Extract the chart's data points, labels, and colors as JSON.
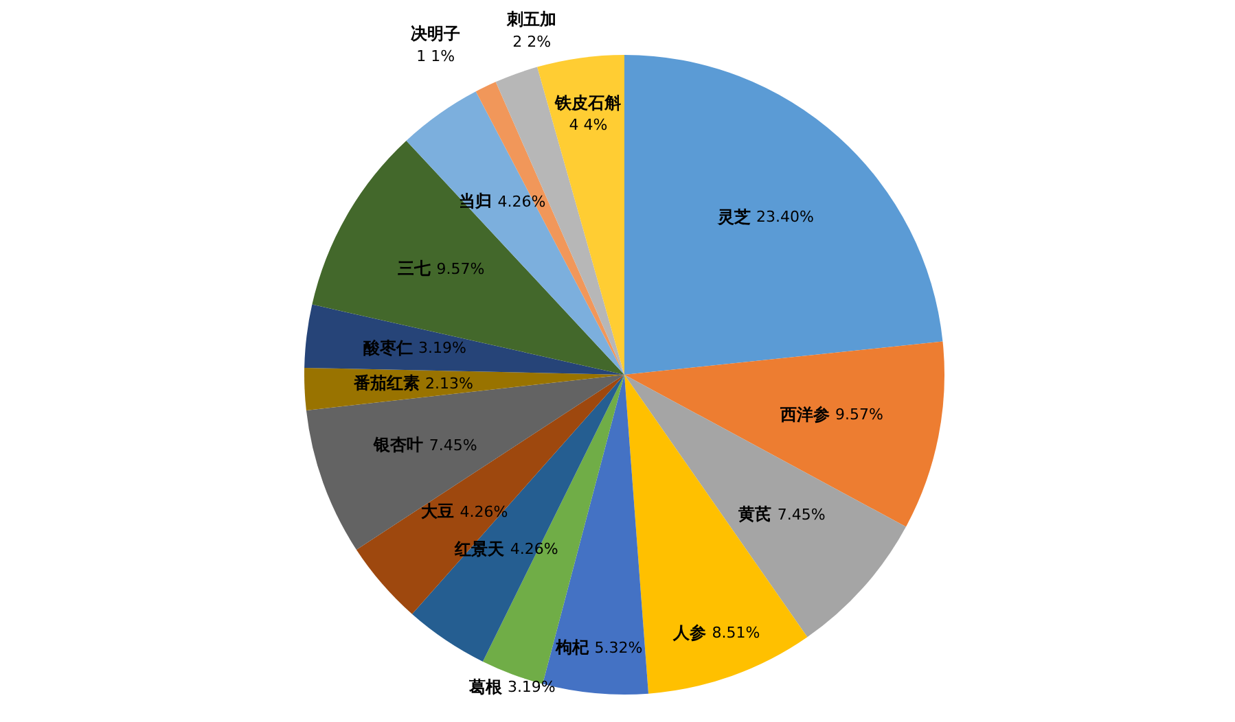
{
  "chart_data": {
    "type": "pie",
    "categories": [
      "灵芝",
      "西洋参",
      "黄芪",
      "人参",
      "枸杞",
      "葛根",
      "红景天",
      "大豆",
      "银杏叶",
      "番茄红素",
      "酸枣仁",
      "三七",
      "当归",
      "决明子",
      "刺五加",
      "铁皮石斛"
    ],
    "values": [
      23.4,
      9.57,
      7.45,
      8.51,
      5.32,
      3.19,
      4.26,
      4.26,
      7.45,
      2.13,
      3.19,
      9.57,
      4.26,
      1.1,
      2.2,
      4.4
    ],
    "value_labels": [
      "23.40%",
      "9.57%",
      "7.45%",
      "8.51%",
      "5.32%",
      "3.19%",
      "4.26%",
      "4.26%",
      "7.45%",
      "2.13%",
      "3.19%",
      "9.57%",
      "4.26%",
      "1 1%",
      "2 2%",
      "4 4%"
    ],
    "colors": [
      "#5b9bd5",
      "#ed7d31",
      "#a5a5a5",
      "#ffc000",
      "#4472c4",
      "#70ad47",
      "#255e91",
      "#9e480e",
      "#636363",
      "#997300",
      "#264478",
      "#43682b",
      "#7cafdd",
      "#f1975a",
      "#b7b7b7",
      "#ffcd33"
    ],
    "legend": false
  }
}
